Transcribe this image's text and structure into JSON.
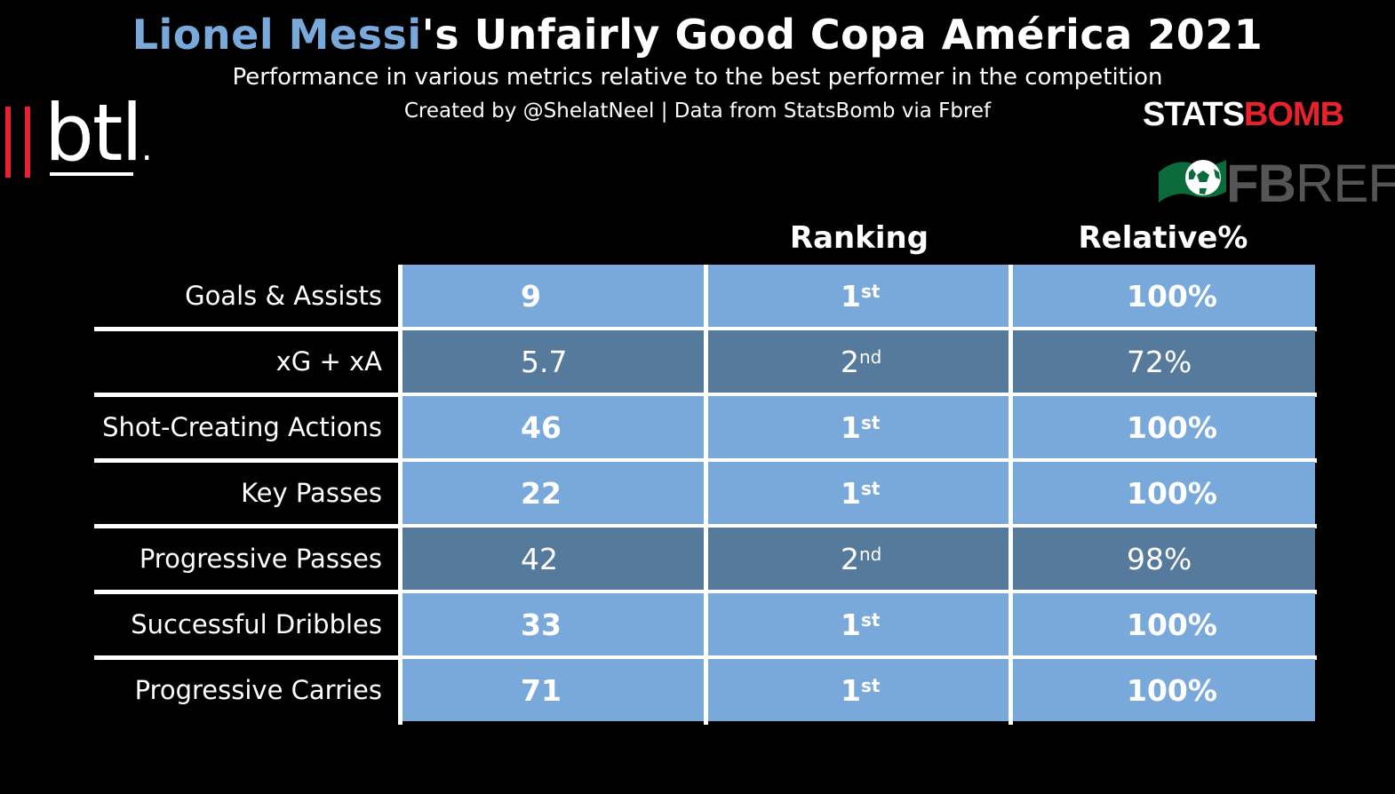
{
  "header": {
    "title_highlight": "Lionel Messi",
    "title_rest": "'s Unfairly Good Copa América 2021",
    "subtitle": "Performance in various metrics relative to the best performer in the competition",
    "credit": "Created by @ShelatNeel | Data from StatsBomb via Fbref"
  },
  "logos": {
    "btl": "btl",
    "statsbomb_white": "STATS",
    "statsbomb_red": "BOMB",
    "fbref_bold": "FB",
    "fbref_light": "REF"
  },
  "colors": {
    "accent": "#78a9da",
    "highlight_cell": "#78a9da",
    "dim_cell": "#557a9c",
    "background": "#000000",
    "logo_red": "#e8222c"
  },
  "chart_data": {
    "type": "table",
    "columns": [
      "",
      "Ranking",
      "Relative%"
    ],
    "rows": [
      {
        "metric": "Goals & Assists",
        "value": "9",
        "rank_num": "1",
        "rank_suffix": "st",
        "relative": "100%",
        "relative_value": 100,
        "best": true
      },
      {
        "metric": "xG + xA",
        "value": "5.7",
        "rank_num": "2",
        "rank_suffix": "nd",
        "relative": "72%",
        "relative_value": 72,
        "best": false
      },
      {
        "metric": "Shot-Creating Actions",
        "value": "46",
        "rank_num": "1",
        "rank_suffix": "st",
        "relative": "100%",
        "relative_value": 100,
        "best": true
      },
      {
        "metric": "Key Passes",
        "value": "22",
        "rank_num": "1",
        "rank_suffix": "st",
        "relative": "100%",
        "relative_value": 100,
        "best": true
      },
      {
        "metric": "Progressive Passes",
        "value": "42",
        "rank_num": "2",
        "rank_suffix": "nd",
        "relative": "98%",
        "relative_value": 98,
        "best": false
      },
      {
        "metric": "Successful Dribbles",
        "value": "33",
        "rank_num": "1",
        "rank_suffix": "st",
        "relative": "100%",
        "relative_value": 100,
        "best": true
      },
      {
        "metric": "Progressive Carries",
        "value": "71",
        "rank_num": "1",
        "rank_suffix": "st",
        "relative": "100%",
        "relative_value": 100,
        "best": true
      }
    ]
  }
}
